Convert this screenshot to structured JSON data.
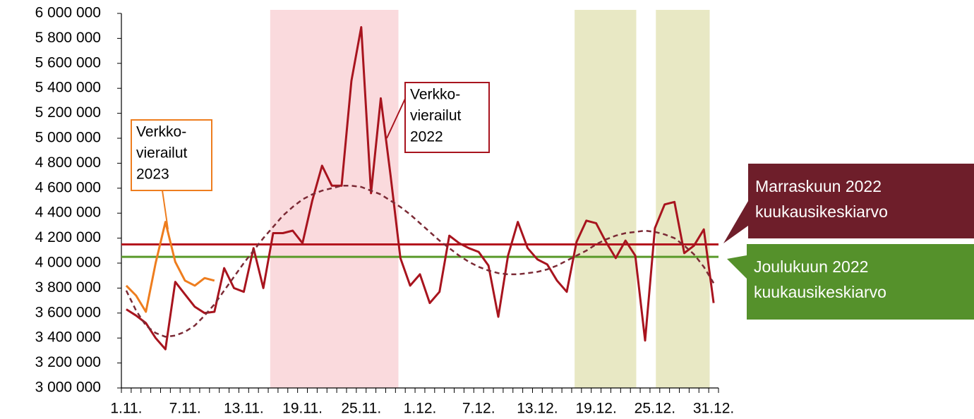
{
  "chart_data": {
    "type": "line",
    "categories": [
      "1.11.",
      null,
      null,
      null,
      null,
      null,
      "7.11.",
      null,
      null,
      null,
      null,
      null,
      "13.11.",
      null,
      null,
      null,
      null,
      null,
      "19.11.",
      null,
      null,
      null,
      null,
      null,
      "25.11.",
      null,
      null,
      null,
      null,
      null,
      "1.12.",
      null,
      null,
      null,
      null,
      null,
      "7.12.",
      null,
      null,
      null,
      null,
      null,
      "13.12.",
      null,
      null,
      null,
      null,
      null,
      "19.12.",
      null,
      null,
      null,
      null,
      null,
      "25.12.",
      null,
      null,
      null,
      null,
      null,
      "31.12."
    ],
    "series": [
      {
        "color": "#a8141e",
        "dash": false,
        "values": [
          3630000,
          3580000,
          3520000,
          3400000,
          3310000,
          3850000,
          3750000,
          3650000,
          3600000,
          3610000,
          3960000,
          3800000,
          3770000,
          4120000,
          3800000,
          4240000,
          4240000,
          4260000,
          4160000,
          4500000,
          4780000,
          4620000,
          4620000,
          5460000,
          5890000,
          4560000,
          5320000,
          4700000,
          4040000,
          3820000,
          3910000,
          3680000,
          3770000,
          4220000,
          4160000,
          4120000,
          4090000,
          3980000,
          3570000,
          4060000,
          4330000,
          4120000,
          4030000,
          3990000,
          3860000,
          3770000,
          4170000,
          4340000,
          4320000,
          4170000,
          4040000,
          4180000,
          4060000,
          3380000,
          4280000,
          4470000,
          4490000,
          4080000,
          4140000,
          4270000,
          3680000
        ]
      },
      {
        "color": "#ee7d1e",
        "dash": false,
        "values": [
          3820000,
          3740000,
          3610000,
          4000000,
          4330000,
          4010000,
          3860000,
          3820000,
          3880000,
          3860000,
          null,
          null,
          null,
          null,
          null,
          null,
          null,
          null,
          null,
          null,
          null,
          null,
          null,
          null,
          null,
          null,
          null,
          null,
          null,
          null,
          null,
          null,
          null,
          null,
          null,
          null,
          null,
          null,
          null,
          null,
          null,
          null,
          null,
          null,
          null,
          null,
          null,
          null,
          null,
          null,
          null,
          null,
          null,
          null,
          null,
          null,
          null,
          null,
          null,
          null,
          null
        ]
      },
      {
        "color": "#7b2a35",
        "dash": true,
        "values": [
          3780000,
          3620000,
          3500000,
          3440000,
          3410000,
          3420000,
          3450000,
          3500000,
          3580000,
          3670000,
          3780000,
          3890000,
          4000000,
          4100000,
          4200000,
          4290000,
          4380000,
          4450000,
          4510000,
          4550000,
          4580000,
          4600000,
          4620000,
          4620000,
          4610000,
          4580000,
          4550000,
          4500000,
          4450000,
          4390000,
          4320000,
          4250000,
          4180000,
          4120000,
          4060000,
          4010000,
          3970000,
          3940000,
          3920000,
          3910000,
          3910000,
          3920000,
          3930000,
          3950000,
          3980000,
          4020000,
          4060000,
          4100000,
          4150000,
          4190000,
          4220000,
          4240000,
          4250000,
          4260000,
          4250000,
          4230000,
          4200000,
          4140000,
          4070000,
          3970000,
          3840000
        ]
      }
    ],
    "reference_lines": [
      {
        "value": 4150000,
        "color": "#b4161e",
        "box_color": "#6e1e2a",
        "label": [
          "Marraskuun 2022",
          "kuukausikeskiarvo"
        ]
      },
      {
        "value": 4050000,
        "color": "#5a9a2a",
        "box_color": "#55912b",
        "label": [
          "Joulukuun 2022",
          "kuukausikeskiarvo"
        ]
      }
    ],
    "highlight_spans": [
      {
        "start": 15.2,
        "end": 28.3,
        "color": "#fadadd"
      },
      {
        "start": 46.3,
        "end": 52.6,
        "color": "#e8e8c4"
      },
      {
        "start": 54.6,
        "end": 60.1,
        "color": "#e8e8c4"
      }
    ],
    "annotations": [
      {
        "text": [
          "Verkko-",
          "vierailut",
          "2023"
        ],
        "color": "#ee7d1e"
      },
      {
        "text": [
          "Verkko-",
          "vierailut",
          "2022"
        ],
        "color": "#a8141e"
      }
    ],
    "ylim": [
      3000000,
      6000000
    ],
    "yticks": [
      {
        "value": 3000000,
        "label": "3 000 000"
      },
      {
        "value": 3200000,
        "label": "3 200 000"
      },
      {
        "value": 3400000,
        "label": "3 400 000"
      },
      {
        "value": 3600000,
        "label": "3 600 000"
      },
      {
        "value": 3800000,
        "label": "3 800 000"
      },
      {
        "value": 4000000,
        "label": "4 000 000"
      },
      {
        "value": 4200000,
        "label": "4 200 000"
      },
      {
        "value": 4400000,
        "label": "4 400 000"
      },
      {
        "value": 4600000,
        "label": "4 600 000"
      },
      {
        "value": 4800000,
        "label": "4 800 000"
      },
      {
        "value": 5000000,
        "label": "5 000 000"
      },
      {
        "value": 5200000,
        "label": "5 200 000"
      },
      {
        "value": 5400000,
        "label": "5 400 000"
      },
      {
        "value": 5600000,
        "label": "5 600 000"
      },
      {
        "value": 5800000,
        "label": "5 800 000"
      },
      {
        "value": 6000000,
        "label": "6 000 000"
      }
    ]
  }
}
